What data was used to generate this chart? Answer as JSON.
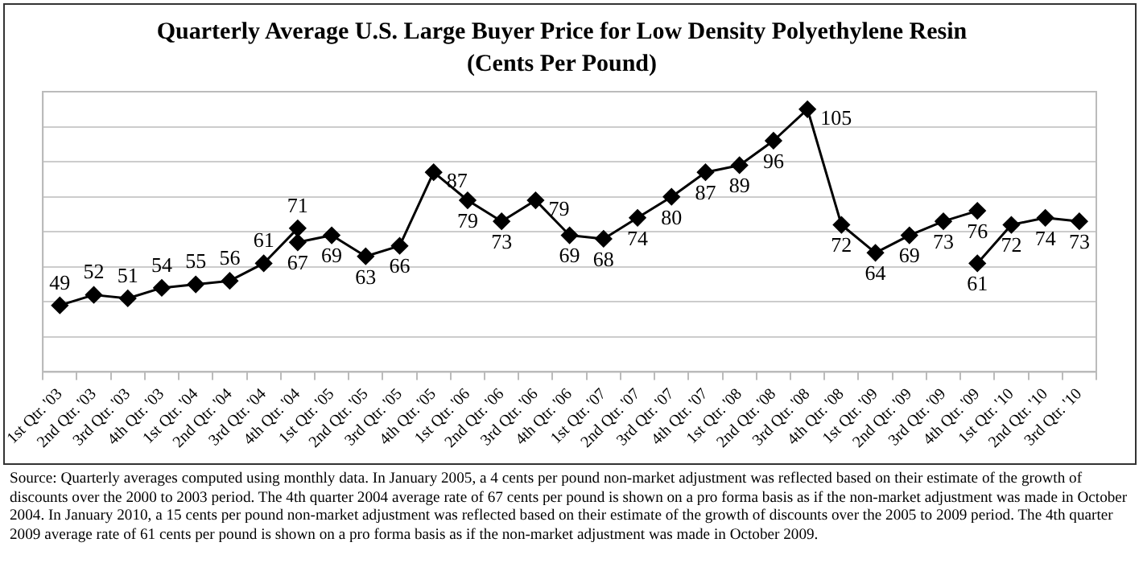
{
  "chart_data": {
    "type": "line",
    "title": "Quarterly Average U.S. Large Buyer Price for Low Density Polyethylene Resin",
    "subtitle": "(Cents Per Pound)",
    "categories": [
      "1st Qtr. '03",
      "2nd Qtr. '03",
      "3rd Qtr. '03",
      "4th Qtr. '03",
      "1st Qtr. '04",
      "2nd Qtr. '04",
      "3rd Qtr. '04",
      "4th Qtr. '04",
      "1st Qtr. '05",
      "2nd Qtr. '05",
      "3rd Qtr. '05",
      "4th Qtr. '05",
      "1st Qtr. '06",
      "2nd Qtr. '06",
      "3rd Qtr. '06",
      "4th Qtr. '06",
      "1st Qtr. '07",
      "2nd Qtr. '07",
      "3rd Qtr. '07",
      "4th Qtr. '07",
      "1st Qtr. '08",
      "2nd Qtr. '08",
      "3rd Qtr. '08",
      "4th Qtr. '08",
      "1st Qtr. '09",
      "2nd Qtr. '09",
      "3rd Qtr. '09",
      "4th Qtr. '09",
      "1st Qtr. '10",
      "2nd Qtr. '10",
      "3rd Qtr. '10"
    ],
    "series": [
      {
        "color": "#000000",
        "values": [
          49,
          52,
          51,
          54,
          55,
          56,
          61,
          71,
          null,
          null,
          null,
          null,
          null,
          null,
          null,
          null,
          null,
          null,
          null,
          null,
          null,
          null,
          null,
          null,
          null,
          null,
          null,
          null,
          null,
          null,
          null
        ]
      },
      {
        "color": "#000000",
        "values": [
          null,
          null,
          null,
          null,
          null,
          null,
          null,
          67,
          69,
          63,
          66,
          87,
          79,
          73,
          79,
          69,
          68,
          74,
          80,
          87,
          89,
          96,
          105,
          72,
          64,
          69,
          73,
          76,
          null,
          null,
          null
        ]
      },
      {
        "color": "#000000",
        "values": [
          null,
          null,
          null,
          null,
          null,
          null,
          null,
          null,
          null,
          null,
          null,
          null,
          null,
          null,
          null,
          null,
          null,
          null,
          null,
          null,
          null,
          null,
          null,
          null,
          null,
          null,
          null,
          61,
          72,
          74,
          73
        ]
      }
    ],
    "ylim": [
      30,
      110
    ],
    "yticks": [
      {
        "value": 30,
        "label": null
      },
      {
        "value": 40,
        "label": null
      },
      {
        "value": 50,
        "label": null
      },
      {
        "value": 60,
        "label": null
      },
      {
        "value": 70,
        "label": null
      },
      {
        "value": 80,
        "label": null
      },
      {
        "value": 90,
        "label": null
      },
      {
        "value": 100,
        "label": null
      },
      {
        "value": 110,
        "label": null
      }
    ],
    "tick_labels": "x",
    "grid": "y",
    "legend": false,
    "marker": "diamond",
    "line_style": "solid",
    "data_labels": true,
    "annotations": [
      "Source:  Quarterly averages computed using monthly data.  In January 2005, a 4 cents per pound non-market adjustment was reflected based on their estimate of the growth of discounts over the 2000 to 2003 period.  The 4th quarter 2004 average rate of 67 cents per pound is shown on a pro forma basis as if the non-market adjustment was made in October 2004.  In January 2010, a 15 cents per pound non-market adjustment was reflected based on their estimate of the growth of discounts over the 2005 to 2009 period.  The 4th quarter 2009 average rate of 61 cents per pound is shown on a pro forma basis as if the non-market adjustment was made in October 2009."
    ]
  }
}
